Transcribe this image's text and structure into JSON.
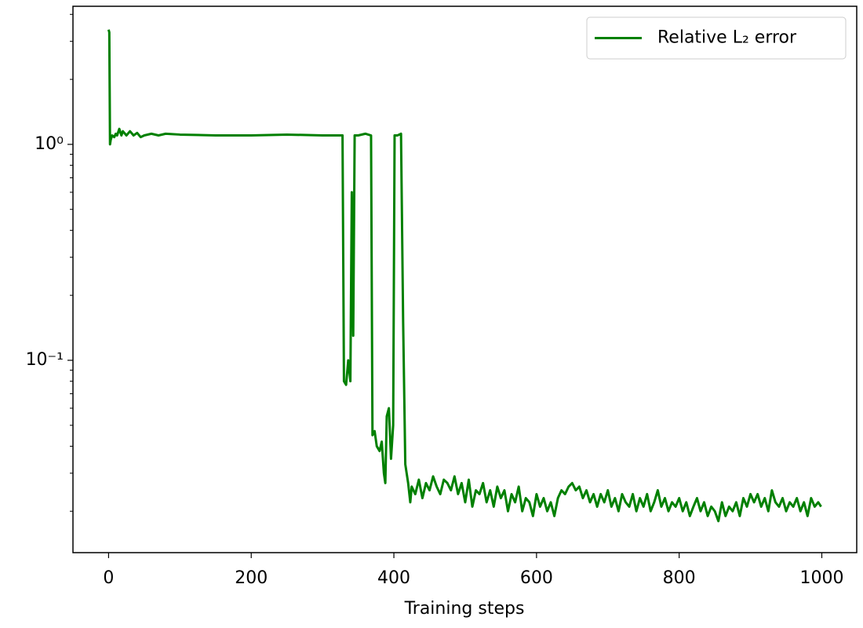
{
  "chart_data": {
    "type": "line",
    "xlabel": "Training steps",
    "x": [
      0,
      1,
      2,
      3,
      5,
      8,
      10,
      12,
      15,
      18,
      20,
      25,
      30,
      35,
      40,
      45,
      50,
      60,
      70,
      80,
      100,
      150,
      200,
      250,
      300,
      328,
      330,
      333,
      336,
      339,
      341,
      343,
      345,
      350,
      360,
      368,
      370,
      373,
      376,
      380,
      383,
      386,
      388,
      390,
      393,
      396,
      399,
      401,
      405,
      410,
      413,
      416,
      420,
      423,
      425,
      430,
      435,
      440,
      445,
      450,
      455,
      460,
      465,
      470,
      475,
      480,
      485,
      490,
      495,
      500,
      505,
      510,
      515,
      520,
      525,
      530,
      535,
      540,
      545,
      550,
      555,
      560,
      565,
      570,
      575,
      580,
      585,
      590,
      595,
      600,
      605,
      610,
      615,
      620,
      625,
      630,
      635,
      640,
      645,
      650,
      655,
      660,
      665,
      670,
      675,
      680,
      685,
      690,
      695,
      700,
      705,
      710,
      715,
      720,
      725,
      730,
      735,
      740,
      745,
      750,
      755,
      760,
      765,
      770,
      775,
      780,
      785,
      790,
      795,
      800,
      805,
      810,
      815,
      820,
      825,
      830,
      835,
      840,
      845,
      850,
      855,
      860,
      865,
      870,
      875,
      880,
      885,
      890,
      895,
      900,
      905,
      910,
      915,
      920,
      925,
      930,
      935,
      940,
      945,
      950,
      955,
      960,
      965,
      970,
      975,
      980,
      985,
      990,
      995,
      999
    ],
    "series": [
      {
        "name": "Relative L₂ error",
        "color": "#008000",
        "values": [
          3.4,
          3.3,
          1.0,
          1.05,
          1.1,
          1.08,
          1.12,
          1.1,
          1.18,
          1.1,
          1.15,
          1.1,
          1.15,
          1.1,
          1.13,
          1.08,
          1.1,
          1.12,
          1.1,
          1.12,
          1.11,
          1.1,
          1.1,
          1.11,
          1.1,
          1.1,
          0.08,
          0.077,
          0.1,
          0.08,
          0.6,
          0.13,
          1.1,
          1.1,
          1.12,
          1.1,
          0.045,
          0.047,
          0.04,
          0.038,
          0.042,
          0.03,
          0.027,
          0.055,
          0.06,
          0.035,
          0.05,
          1.1,
          1.1,
          1.12,
          0.15,
          0.033,
          0.027,
          0.022,
          0.026,
          0.024,
          0.028,
          0.023,
          0.027,
          0.025,
          0.029,
          0.026,
          0.024,
          0.028,
          0.027,
          0.025,
          0.029,
          0.024,
          0.027,
          0.022,
          0.028,
          0.021,
          0.025,
          0.024,
          0.027,
          0.022,
          0.025,
          0.021,
          0.026,
          0.023,
          0.025,
          0.02,
          0.024,
          0.022,
          0.026,
          0.02,
          0.023,
          0.022,
          0.019,
          0.024,
          0.021,
          0.023,
          0.02,
          0.022,
          0.019,
          0.023,
          0.025,
          0.024,
          0.026,
          0.027,
          0.025,
          0.026,
          0.023,
          0.025,
          0.022,
          0.024,
          0.021,
          0.024,
          0.022,
          0.025,
          0.021,
          0.023,
          0.02,
          0.024,
          0.022,
          0.021,
          0.024,
          0.02,
          0.023,
          0.021,
          0.024,
          0.02,
          0.022,
          0.025,
          0.021,
          0.023,
          0.02,
          0.022,
          0.021,
          0.023,
          0.02,
          0.022,
          0.019,
          0.021,
          0.023,
          0.02,
          0.022,
          0.019,
          0.021,
          0.02,
          0.018,
          0.022,
          0.019,
          0.021,
          0.02,
          0.022,
          0.019,
          0.023,
          0.021,
          0.024,
          0.022,
          0.024,
          0.021,
          0.023,
          0.02,
          0.025,
          0.022,
          0.021,
          0.023,
          0.02,
          0.022,
          0.021,
          0.023,
          0.02,
          0.022,
          0.019,
          0.023,
          0.021,
          0.022,
          0.021
        ]
      }
    ],
    "xlim": [
      -49.95,
      1048.95
    ],
    "xticks": [
      0,
      200,
      400,
      600,
      800,
      1000
    ],
    "ylim": [
      0.01286,
      4.36
    ],
    "ylog": true,
    "yticks": [
      {
        "value": 0.1,
        "label": "10⁻¹"
      },
      {
        "value": 1,
        "label": "10⁰"
      }
    ],
    "yminorticks": [
      0.02,
      0.03,
      0.04,
      0.05,
      0.06,
      0.07,
      0.08,
      0.09,
      0.2,
      0.3,
      0.4,
      0.5,
      0.6,
      0.7,
      0.8,
      0.9,
      2,
      3,
      4
    ],
    "legend": "upper right"
  }
}
